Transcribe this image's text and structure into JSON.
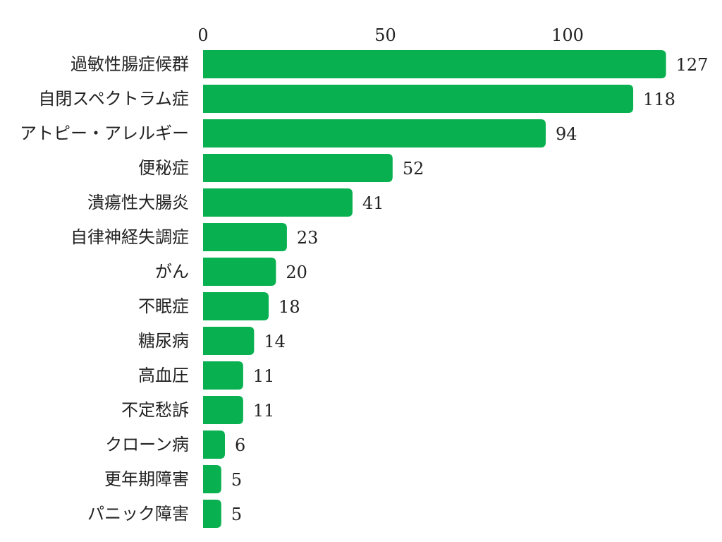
{
  "chart_data": {
    "type": "bar",
    "orientation": "horizontal",
    "title": "",
    "xlabel": "",
    "ylabel": "",
    "xlim": [
      0,
      127
    ],
    "x_ticks": [
      0,
      50,
      100
    ],
    "grid": false,
    "legend": "none",
    "bar_color": "#08b04f",
    "categories": [
      "過敏性腸症候群",
      "自閉スペクトラム症",
      "アトピー・アレルギー",
      "便秘症",
      "潰瘍性大腸炎",
      "自律神経失調症",
      "がん",
      "不眠症",
      "糖尿病",
      "高血圧",
      "不定愁訴",
      "クローン病",
      "更年期障害",
      "パニック障害"
    ],
    "values": [
      127,
      118,
      94,
      52,
      41,
      23,
      20,
      18,
      14,
      11,
      11,
      6,
      5,
      5
    ]
  }
}
